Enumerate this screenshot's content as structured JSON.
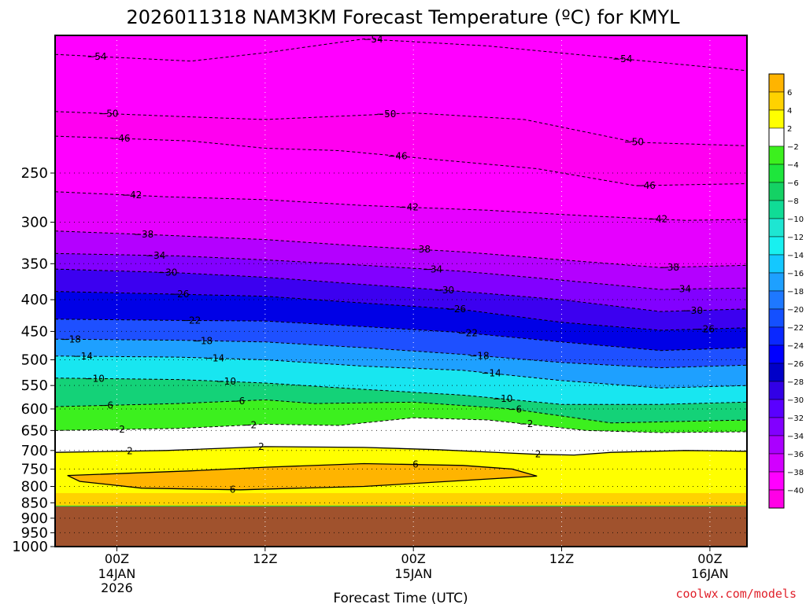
{
  "chart_data": {
    "type": "heatmap",
    "title": "2026011318 NAM3KM Forecast Temperature (ºC) for KMYL",
    "xlabel": "Forecast Time (UTC)",
    "ylabel": "",
    "station": "KMYL",
    "model": "NAM3KM",
    "init": "2026011318",
    "y_scale": "log-pressure",
    "x_unit": "hours from 2026-01-14 00Z",
    "xlim": [
      -5,
      51
    ],
    "ylim_hpa": [
      1000,
      150
    ],
    "x_ticks": [
      {
        "x": 0,
        "label": "00Z",
        "sub": [
          "14JAN",
          "2026"
        ]
      },
      {
        "x": 12,
        "label": "12Z",
        "sub": []
      },
      {
        "x": 24,
        "label": "00Z",
        "sub": [
          "15JAN"
        ]
      },
      {
        "x": 36,
        "label": "12Z",
        "sub": []
      },
      {
        "x": 48,
        "label": "00Z",
        "sub": [
          "16JAN"
        ]
      }
    ],
    "y_ticks": [
      250,
      300,
      350,
      400,
      450,
      500,
      550,
      600,
      650,
      700,
      750,
      800,
      850,
      900,
      950,
      1000
    ],
    "colorbar": {
      "levels": [
        "6",
        "4",
        "2",
        "-2",
        "-4",
        "-6",
        "-8",
        "-10",
        "-12",
        "-14",
        "-16",
        "-18",
        "-20",
        "-22",
        "-24",
        "-26",
        "-28",
        "-30",
        "-32",
        "-34",
        "-36",
        "-38",
        "-40"
      ],
      "colors": [
        "#ffb400",
        "#ffd200",
        "#ffff00",
        "#ffffff",
        "#3cf01e",
        "#1ee63c",
        "#14d264",
        "#10dc96",
        "#1ee6d2",
        "#18f0f0",
        "#14c8ff",
        "#1ea0ff",
        "#1e78ff",
        "#1450ff",
        "#0a28ff",
        "#0000ff",
        "#0000c8",
        "#3200e6",
        "#5a00ff",
        "#8200ff",
        "#aa00ff",
        "#d200ff",
        "#ff00ff",
        "#ff00e6"
      ]
    },
    "terrain": {
      "color": "#a0522d",
      "below_hpa": 860
    },
    "contours": [
      {
        "value": -54,
        "p": [
          [
            -5,
            161
          ],
          [
            6,
            165
          ],
          [
            12,
            160
          ],
          [
            20,
            152
          ],
          [
            30,
            156
          ],
          [
            40,
            163
          ],
          [
            51,
            171
          ]
        ]
      },
      {
        "value": -50,
        "p": [
          [
            -5,
            199
          ],
          [
            6,
            203
          ],
          [
            12,
            205
          ],
          [
            24,
            200
          ],
          [
            33,
            205
          ],
          [
            42,
            223
          ],
          [
            51,
            226
          ]
        ]
      },
      {
        "value": -46,
        "p": [
          [
            -5,
            218
          ],
          [
            6,
            222
          ],
          [
            12,
            228
          ],
          [
            18,
            230
          ],
          [
            26,
            238
          ],
          [
            34,
            246
          ],
          [
            42,
            262
          ],
          [
            51,
            260
          ]
        ]
      },
      {
        "value": -42,
        "p": [
          [
            -5,
            268
          ],
          [
            4,
            273
          ],
          [
            12,
            276
          ],
          [
            20,
            282
          ],
          [
            30,
            287
          ],
          [
            38,
            293
          ],
          [
            46,
            298
          ],
          [
            51,
            297
          ]
        ]
      },
      {
        "value": -38,
        "p": [
          [
            -5,
            310
          ],
          [
            4,
            315
          ],
          [
            12,
            320
          ],
          [
            20,
            328
          ],
          [
            28,
            335
          ],
          [
            36,
            345
          ],
          [
            44,
            355
          ],
          [
            51,
            352
          ]
        ]
      },
      {
        "value": -34,
        "p": [
          [
            -5,
            337
          ],
          [
            5,
            340
          ],
          [
            12,
            345
          ],
          [
            20,
            352
          ],
          [
            28,
            360
          ],
          [
            36,
            372
          ],
          [
            44,
            385
          ],
          [
            51,
            383
          ]
        ]
      },
      {
        "value": -30,
        "p": [
          [
            -5,
            357
          ],
          [
            5,
            362
          ],
          [
            12,
            368
          ],
          [
            20,
            378
          ],
          [
            28,
            388
          ],
          [
            36,
            400
          ],
          [
            44,
            418
          ],
          [
            51,
            414
          ]
        ]
      },
      {
        "value": -26,
        "p": [
          [
            -5,
            388
          ],
          [
            5,
            392
          ],
          [
            12,
            395
          ],
          [
            20,
            405
          ],
          [
            28,
            415
          ],
          [
            36,
            435
          ],
          [
            44,
            448
          ],
          [
            51,
            444
          ]
        ]
      },
      {
        "value": -22,
        "p": [
          [
            -5,
            430
          ],
          [
            5,
            432
          ],
          [
            12,
            433
          ],
          [
            20,
            442
          ],
          [
            28,
            452
          ],
          [
            36,
            468
          ],
          [
            44,
            483
          ],
          [
            51,
            478
          ]
        ]
      },
      {
        "value": -18,
        "p": [
          [
            -5,
            463
          ],
          [
            5,
            465
          ],
          [
            12,
            468
          ],
          [
            20,
            478
          ],
          [
            28,
            490
          ],
          [
            36,
            505
          ],
          [
            44,
            515
          ],
          [
            51,
            510
          ]
        ]
      },
      {
        "value": -14,
        "p": [
          [
            -5,
            493
          ],
          [
            5,
            495
          ],
          [
            12,
            500
          ],
          [
            20,
            512
          ],
          [
            28,
            520
          ],
          [
            36,
            540
          ],
          [
            44,
            555
          ],
          [
            51,
            550
          ]
        ]
      },
      {
        "value": -10,
        "p": [
          [
            -5,
            535
          ],
          [
            5,
            538
          ],
          [
            12,
            545
          ],
          [
            20,
            558
          ],
          [
            28,
            570
          ],
          [
            36,
            590
          ],
          [
            44,
            590
          ],
          [
            51,
            585
          ]
        ]
      },
      {
        "value": -6,
        "p": [
          [
            -5,
            595
          ],
          [
            5,
            588
          ],
          [
            12,
            580
          ],
          [
            16,
            588
          ],
          [
            24,
            585
          ],
          [
            32,
            600
          ],
          [
            40,
            632
          ],
          [
            51,
            625
          ]
        ]
      },
      {
        "value": -2,
        "p": [
          [
            -5,
            650
          ],
          [
            5,
            645
          ],
          [
            12,
            635
          ],
          [
            18,
            638
          ],
          [
            24,
            620
          ],
          [
            30,
            625
          ],
          [
            38,
            650
          ],
          [
            44,
            655
          ],
          [
            51,
            653
          ]
        ]
      },
      {
        "value": 2,
        "p": [
          [
            -5,
            705
          ],
          [
            4,
            700
          ],
          [
            12,
            690
          ],
          [
            20,
            692
          ],
          [
            26,
            698
          ],
          [
            34,
            710
          ],
          [
            37,
            712
          ],
          [
            40,
            705
          ],
          [
            46,
            700
          ],
          [
            51,
            702
          ]
        ]
      },
      {
        "value": 6,
        "p": [
          [
            -4,
            768
          ],
          [
            6,
            755
          ],
          [
            12,
            745
          ],
          [
            20,
            735
          ],
          [
            28,
            740
          ],
          [
            32,
            750
          ],
          [
            34,
            770
          ],
          [
            20,
            800
          ],
          [
            10,
            810
          ],
          [
            2,
            805
          ],
          [
            -3,
            785
          ]
        ]
      }
    ]
  },
  "credit": "coolwx.com/models"
}
